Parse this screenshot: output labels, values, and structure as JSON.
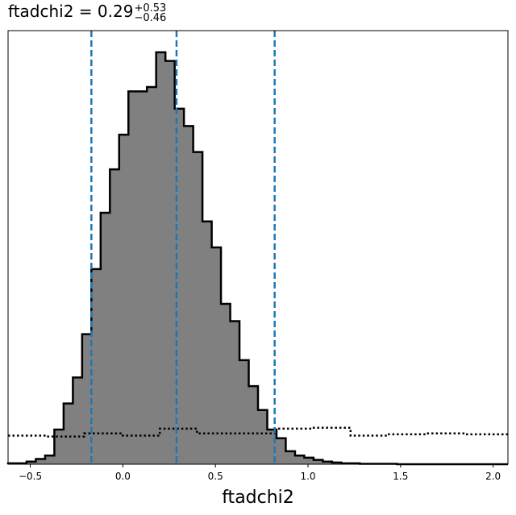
{
  "chart_data": {
    "type": "histogram",
    "title": {
      "parameter": "ftadchi2",
      "median": "0.29",
      "upper_error": "+0.53",
      "lower_error": "−0.46"
    },
    "xlabel": "ftadchi2",
    "xlim": [
      -0.62,
      2.08
    ],
    "ylim": [
      0,
      1.0
    ],
    "x_ticks": [
      -0.5,
      0.0,
      0.5,
      1.0,
      1.5,
      2.0
    ],
    "x_tick_labels": [
      "−0.5",
      "0.0",
      "0.5",
      "1.0",
      "1.5",
      "2.0"
    ],
    "y_ticks_shown": false,
    "grid": false,
    "bin_width": 0.05,
    "bins_start": -0.62,
    "posterior_counts": [
      0.002,
      0.002,
      0.006,
      0.012,
      0.02,
      0.08,
      0.14,
      0.2,
      0.3,
      0.45,
      0.58,
      0.68,
      0.76,
      0.86,
      0.86,
      0.87,
      0.95,
      0.93,
      0.82,
      0.78,
      0.72,
      0.56,
      0.5,
      0.37,
      0.33,
      0.24,
      0.18,
      0.125,
      0.08,
      0.06,
      0.03,
      0.02,
      0.015,
      0.01,
      0.006,
      0.004,
      0.002,
      0.002,
      0.001,
      0.001,
      0.001,
      0.001,
      0.0,
      0.0,
      0.0,
      0.0,
      0.0,
      0.0,
      0.0,
      0.0,
      0.0,
      0.0,
      0.0,
      0.0
    ],
    "prior_line": {
      "style": "dotted",
      "x": [
        -0.62,
        -0.41,
        -0.41,
        -0.21,
        -0.21,
        0.0,
        0.0,
        0.2,
        0.2,
        0.4,
        0.4,
        0.61,
        0.61,
        0.82,
        0.82,
        1.02,
        1.02,
        1.23,
        1.23,
        1.43,
        1.43,
        1.64,
        1.64,
        1.85,
        1.85,
        2.08
      ],
      "y": [
        0.066,
        0.066,
        0.064,
        0.064,
        0.071,
        0.071,
        0.066,
        0.066,
        0.082,
        0.082,
        0.071,
        0.071,
        0.071,
        0.071,
        0.082,
        0.082,
        0.084,
        0.084,
        0.066,
        0.066,
        0.069,
        0.069,
        0.071,
        0.071,
        0.069,
        0.069
      ]
    },
    "quantile_lines": [
      -0.17,
      0.29,
      0.82
    ],
    "colors": {
      "fill": "#808080",
      "edge": "#000000",
      "quantile": "#1f77b4",
      "prior": "#000000"
    }
  }
}
